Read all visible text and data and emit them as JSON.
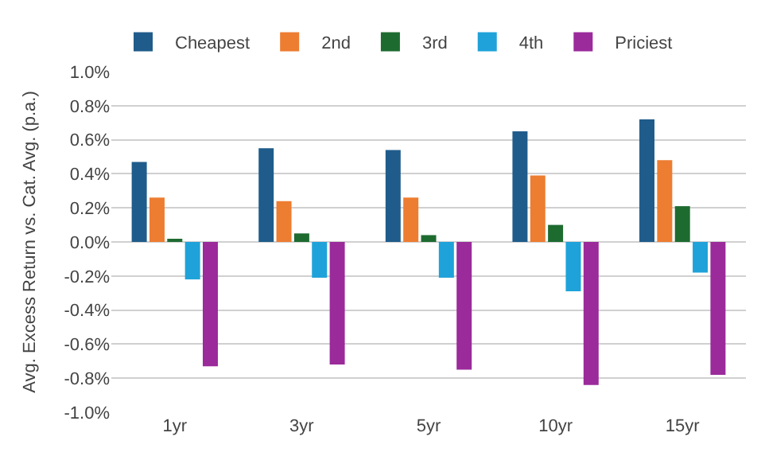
{
  "chart_data": {
    "type": "bar",
    "ylabel": "Avg. Excess Return vs. Cat. Avg. (p.a.)",
    "categories": [
      "1yr",
      "3yr",
      "5yr",
      "10yr",
      "15yr"
    ],
    "series": [
      {
        "name": "Cheapest",
        "color": "#1f5c8b",
        "values": [
          0.47,
          0.55,
          0.54,
          0.65,
          0.72
        ]
      },
      {
        "name": "2nd",
        "color": "#ed7d31",
        "values": [
          0.26,
          0.24,
          0.26,
          0.39,
          0.48
        ]
      },
      {
        "name": "3rd",
        "color": "#1e6b30",
        "values": [
          0.01,
          0.05,
          0.04,
          0.1,
          0.21
        ]
      },
      {
        "name": "4th",
        "color": "#1fa2d9",
        "values": [
          -0.22,
          -0.21,
          -0.21,
          -0.29,
          -0.18
        ]
      },
      {
        "name": "Priciest",
        "color": "#9b2a9b",
        "values": [
          -0.73,
          -0.72,
          -0.75,
          -0.84,
          -0.78
        ]
      }
    ],
    "ylim": [
      -1.0,
      1.0
    ],
    "yticks": [
      {
        "value": -1.0,
        "label": "-1.0%"
      },
      {
        "value": -0.8,
        "label": "-0.8%"
      },
      {
        "value": -0.6,
        "label": "-0.6%"
      },
      {
        "value": -0.4,
        "label": "-0.4%"
      },
      {
        "value": -0.2,
        "label": "-0.2%"
      },
      {
        "value": 0.0,
        "label": "0.0%"
      },
      {
        "value": 0.2,
        "label": "0.2%"
      },
      {
        "value": 0.4,
        "label": "0.4%"
      },
      {
        "value": 0.6,
        "label": "0.6%"
      },
      {
        "value": 0.8,
        "label": "0.8%"
      },
      {
        "value": 1.0,
        "label": "1.0%"
      }
    ],
    "grid": "y",
    "legend": "top left"
  }
}
